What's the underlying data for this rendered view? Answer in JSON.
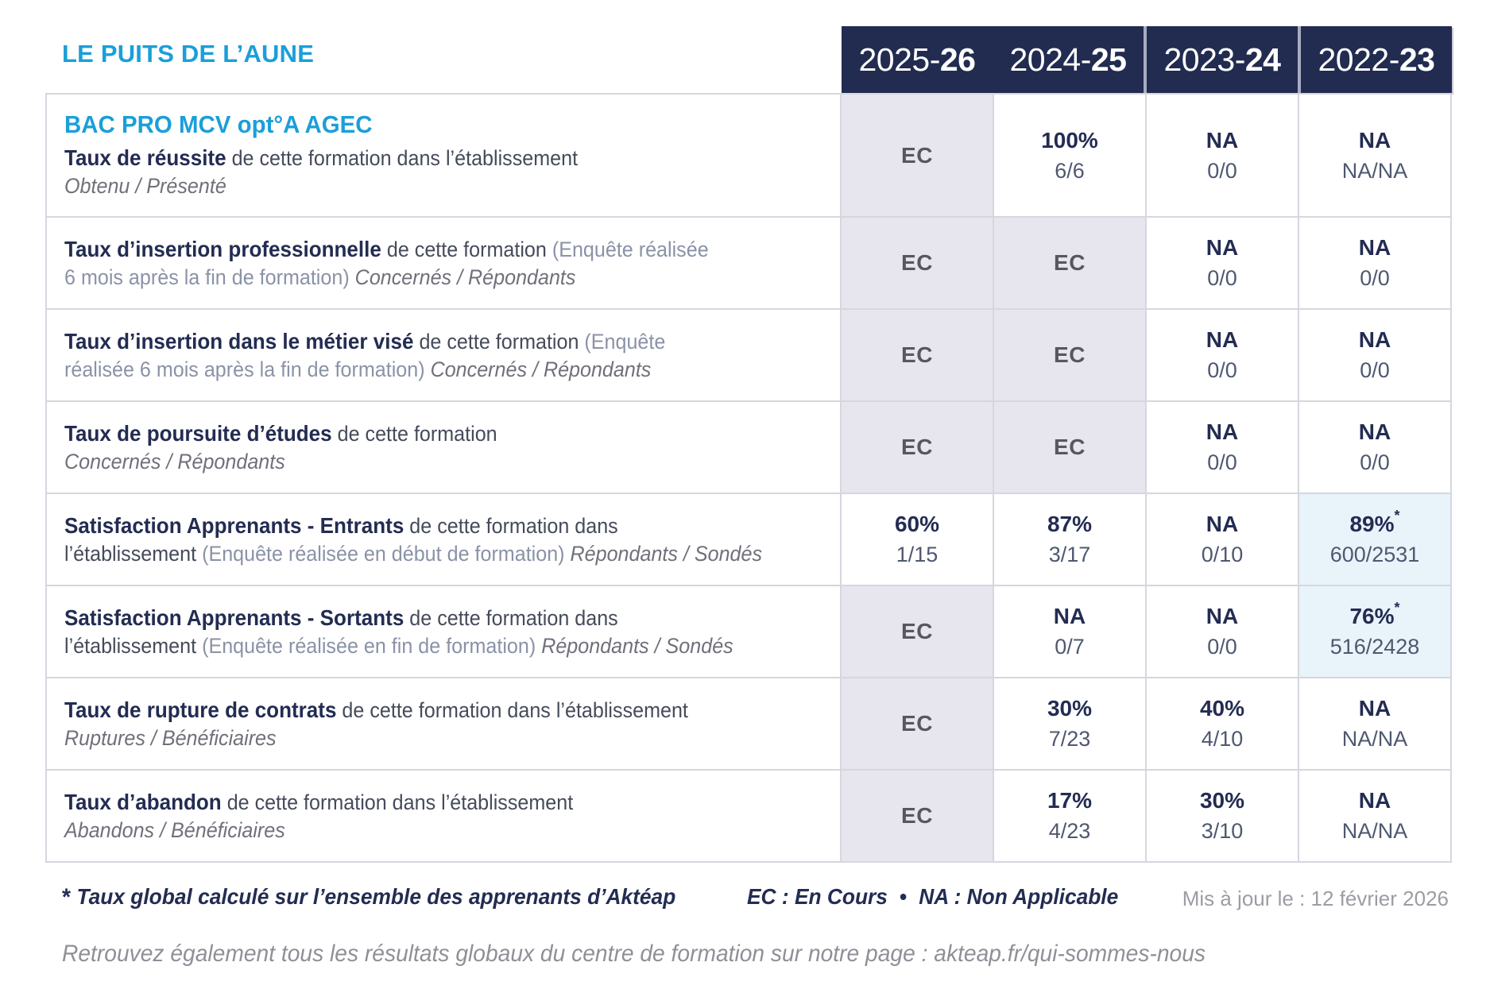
{
  "org_name": "LE PUITS DE L’AUNE",
  "program_title": "BAC PRO MCV opt°A AGEC",
  "colors": {
    "accent_blue": "#1A9FD9",
    "navy": "#232C52",
    "band_bg": "#222B50",
    "band_divider": "#A8ACC2",
    "ec_bg": "#E7E6EE",
    "ec_text": "#57575F",
    "highlight_bg": "#E9F3FA",
    "desc_text": "#454B5A",
    "paren_text": "#8A92A6",
    "sub_italic": "#70707B",
    "value_sub": "#4E5870",
    "grid_border": "#D6D6E0",
    "updated_gray": "#9C9CA4",
    "footer_gray": "#8F8F98"
  },
  "columns": [
    {
      "prefix": "2025-",
      "bold": "26"
    },
    {
      "prefix": "2024-",
      "bold": "25"
    },
    {
      "prefix": "2023-",
      "bold": "24"
    },
    {
      "prefix": "2022-",
      "bold": "23"
    }
  ],
  "rows": [
    {
      "title": "Taux de réussite",
      "desc": "de cette formation dans l’établissement",
      "paren_l1": "",
      "desc_l2": "",
      "paren_l2": "",
      "sub": "Obtenu / Présenté",
      "cells": [
        {
          "main": "EC"
        },
        {
          "main": "100%",
          "sub": "6/6"
        },
        {
          "main": "NA",
          "sub": "0/0"
        },
        {
          "main": "NA",
          "sub": "NA/NA"
        }
      ]
    },
    {
      "title": "Taux d’insertion professionnelle",
      "desc": "de cette formation",
      "paren_l1": "(Enquête réalisée",
      "desc_l2": "",
      "paren_l2": "6 mois après la fin de formation)",
      "sub": "Concernés / Répondants",
      "cells": [
        {
          "main": "EC"
        },
        {
          "main": "EC"
        },
        {
          "main": "NA",
          "sub": "0/0"
        },
        {
          "main": "NA",
          "sub": "0/0"
        }
      ]
    },
    {
      "title": "Taux d’insertion dans le métier visé",
      "desc": "de cette formation",
      "paren_l1": "(Enquête",
      "desc_l2": "",
      "paren_l2": "réalisée 6 mois après la fin de formation)",
      "sub": "Concernés / Répondants",
      "cells": [
        {
          "main": "EC"
        },
        {
          "main": "EC"
        },
        {
          "main": "NA",
          "sub": "0/0"
        },
        {
          "main": "NA",
          "sub": "0/0"
        }
      ]
    },
    {
      "title": "Taux de poursuite d’études",
      "desc": "de cette formation",
      "paren_l1": "",
      "desc_l2": "",
      "paren_l2": "",
      "sub": "Concernés / Répondants",
      "cells": [
        {
          "main": "EC"
        },
        {
          "main": "EC"
        },
        {
          "main": "NA",
          "sub": "0/0"
        },
        {
          "main": "NA",
          "sub": "0/0"
        }
      ]
    },
    {
      "title": "Satisfaction Apprenants - Entrants",
      "desc": "de cette formation dans",
      "paren_l1": "",
      "desc_l2": "l’établissement",
      "paren_l2": "(Enquête réalisée en début de formation)",
      "sub": "Répondants / Sondés",
      "cells": [
        {
          "main": "60%",
          "sub": "1/15"
        },
        {
          "main": "87%",
          "sub": "3/17"
        },
        {
          "main": "NA",
          "sub": "0/10"
        },
        {
          "main": "89%",
          "star": "*",
          "sub": "600/2531"
        }
      ]
    },
    {
      "title": "Satisfaction Apprenants - Sortants",
      "desc": "de cette formation dans",
      "paren_l1": "",
      "desc_l2": "l’établissement",
      "paren_l2": "(Enquête réalisée en fin de formation)",
      "sub": "Répondants / Sondés",
      "cells": [
        {
          "main": "EC"
        },
        {
          "main": "NA",
          "sub": "0/7"
        },
        {
          "main": "NA",
          "sub": "0/0"
        },
        {
          "main": "76%",
          "star": "*",
          "sub": "516/2428"
        }
      ]
    },
    {
      "title": "Taux de rupture de contrats",
      "desc": "de cette formation dans l’établissement",
      "paren_l1": "",
      "desc_l2": "",
      "paren_l2": "",
      "sub": "Ruptures / Bénéficiaires",
      "cells": [
        {
          "main": "EC"
        },
        {
          "main": "30%",
          "sub": "7/23"
        },
        {
          "main": "40%",
          "sub": "4/10"
        },
        {
          "main": "NA",
          "sub": "NA/NA"
        }
      ]
    },
    {
      "title": "Taux d’abandon",
      "desc": "de cette formation dans l’établissement",
      "paren_l1": "",
      "desc_l2": "",
      "paren_l2": "",
      "sub": "Abandons / Bénéficiaires",
      "cells": [
        {
          "main": "EC"
        },
        {
          "main": "17%",
          "sub": "4/23"
        },
        {
          "main": "30%",
          "sub": "3/10"
        },
        {
          "main": "NA",
          "sub": "NA/NA"
        }
      ]
    }
  ],
  "footer": {
    "star": "*",
    "note": "Taux global calculé sur l’ensemble des apprenants d’Aktéap",
    "legend_ec": "EC : En Cours",
    "bullet": "•",
    "legend_na": "NA : Non Applicable",
    "updated": "Mis à jour le : 12 février 2026",
    "results_prefix": "Retrouvez également tous les résultats globaux du centre de formation sur notre page : ",
    "results_url": "akteap.fr/qui-sommes-nous"
  }
}
